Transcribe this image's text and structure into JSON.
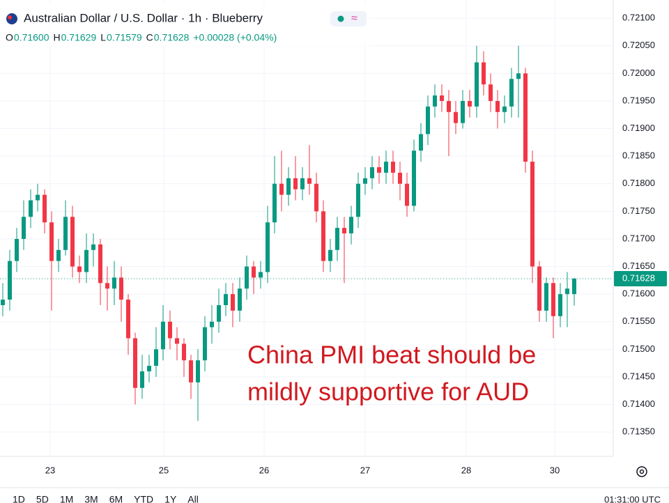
{
  "chart_data": {
    "type": "candlestick",
    "title": "Australian Dollar / U.S. Dollar · 1h · Blueberry",
    "ohlc_header": {
      "o_label": "O",
      "open": "0.71600",
      "h_label": "H",
      "high": "0.71629",
      "l_label": "L",
      "low": "0.71579",
      "c_label": "C",
      "close": "0.71628",
      "change": "+0.00028 (+0.04%)"
    },
    "last_price_label": "0.71628",
    "annotation": [
      "China PMI beat should be",
      "mildly supportive for AUD"
    ],
    "up_color": "#089981",
    "down_color": "#f23645",
    "annotation_color": "#d0191f",
    "grid": true,
    "x": [
      0,
      1,
      2,
      3,
      4,
      5,
      6,
      7,
      8,
      9,
      10,
      11,
      12,
      13,
      14,
      15,
      16,
      17,
      18,
      19,
      20,
      21,
      22,
      23,
      24,
      25,
      26,
      27,
      28,
      29,
      30,
      31,
      32,
      33,
      34,
      35,
      36,
      37,
      38,
      39,
      40,
      41,
      42,
      43,
      44,
      45,
      46,
      47,
      48,
      49,
      50,
      51,
      52,
      53,
      54,
      55,
      56,
      57,
      58,
      59,
      60,
      61,
      62,
      63,
      64,
      65,
      66,
      67,
      68,
      69,
      70,
      71,
      72,
      73,
      74,
      75,
      76,
      77,
      78,
      79,
      80,
      81,
      82
    ],
    "open": [
      0.7158,
      0.7159,
      0.7166,
      0.717,
      0.7174,
      0.7177,
      0.7178,
      0.7173,
      0.7166,
      0.7168,
      0.7174,
      0.7165,
      0.7164,
      0.7168,
      0.7169,
      0.7162,
      0.7161,
      0.7163,
      0.7159,
      0.7152,
      0.7143,
      0.7146,
      0.7147,
      0.715,
      0.7155,
      0.7152,
      0.7151,
      0.7148,
      0.7144,
      0.7148,
      0.7154,
      0.7155,
      0.7158,
      0.716,
      0.7157,
      0.7161,
      0.7165,
      0.7163,
      0.7164,
      0.7173,
      0.718,
      0.7178,
      0.7181,
      0.7179,
      0.7181,
      0.718,
      0.7175,
      0.7166,
      0.7168,
      0.7172,
      0.7171,
      0.7174,
      0.718,
      0.7181,
      0.7183,
      0.7182,
      0.7184,
      0.7182,
      0.718,
      0.7176,
      0.7186,
      0.7189,
      0.7194,
      0.7196,
      0.7195,
      0.7193,
      0.7191,
      0.7195,
      0.7194,
      0.7202,
      0.7198,
      0.7195,
      0.7193,
      0.7194,
      0.7199,
      0.72,
      0.7184,
      0.7165,
      0.7157,
      0.7162,
      0.7156,
      0.716,
      0.716
    ],
    "high": [
      0.7162,
      0.7168,
      0.7172,
      0.7177,
      0.7179,
      0.718,
      0.7179,
      0.7175,
      0.717,
      0.7177,
      0.7176,
      0.7167,
      0.7171,
      0.7171,
      0.717,
      0.7165,
      0.7166,
      0.7165,
      0.716,
      0.7153,
      0.7149,
      0.7149,
      0.7154,
      0.7158,
      0.7157,
      0.7154,
      0.7152,
      0.7149,
      0.715,
      0.7156,
      0.7158,
      0.7161,
      0.7162,
      0.7162,
      0.7163,
      0.7167,
      0.7166,
      0.7166,
      0.7176,
      0.7185,
      0.7186,
      0.7183,
      0.7185,
      0.7183,
      0.7187,
      0.7182,
      0.7177,
      0.717,
      0.7174,
      0.7174,
      0.7176,
      0.7182,
      0.7183,
      0.7185,
      0.7185,
      0.7186,
      0.7186,
      0.7184,
      0.7182,
      0.7188,
      0.7191,
      0.7196,
      0.7198,
      0.7198,
      0.7197,
      0.7195,
      0.7197,
      0.7197,
      0.7205,
      0.7204,
      0.72,
      0.7197,
      0.7196,
      0.7201,
      0.7205,
      0.7201,
      0.7186,
      0.7166,
      0.7163,
      0.7163,
      0.7162,
      0.7164,
      0.71629
    ],
    "low": [
      0.7156,
      0.7157,
      0.7164,
      0.7168,
      0.7172,
      0.7175,
      0.7171,
      0.7157,
      0.7164,
      0.7167,
      0.7163,
      0.7162,
      0.7162,
      0.7165,
      0.7158,
      0.7157,
      0.7158,
      0.7155,
      0.7149,
      0.714,
      0.7141,
      0.7144,
      0.7145,
      0.7148,
      0.715,
      0.7148,
      0.7145,
      0.7141,
      0.7137,
      0.7146,
      0.7151,
      0.7153,
      0.7156,
      0.7154,
      0.7155,
      0.7159,
      0.716,
      0.7161,
      0.7162,
      0.7171,
      0.7175,
      0.7176,
      0.7177,
      0.7177,
      0.7178,
      0.7173,
      0.7164,
      0.7164,
      0.7166,
      0.7162,
      0.7169,
      0.7172,
      0.7178,
      0.7179,
      0.718,
      0.718,
      0.718,
      0.7177,
      0.7174,
      0.7175,
      0.7184,
      0.7187,
      0.7192,
      0.7193,
      0.7185,
      0.7189,
      0.719,
      0.7192,
      0.7192,
      0.7196,
      0.7193,
      0.719,
      0.7191,
      0.7192,
      0.7192,
      0.7182,
      0.7162,
      0.7155,
      0.7155,
      0.7152,
      0.7154,
      0.7154,
      0.71579
    ],
    "close": [
      0.7159,
      0.7166,
      0.717,
      0.7174,
      0.7177,
      0.7178,
      0.7173,
      0.7166,
      0.7168,
      0.7174,
      0.7165,
      0.7164,
      0.7168,
      0.7169,
      0.7162,
      0.7161,
      0.7163,
      0.7159,
      0.7152,
      0.7143,
      0.7146,
      0.7147,
      0.715,
      0.7155,
      0.7152,
      0.7151,
      0.7148,
      0.7144,
      0.7148,
      0.7154,
      0.7155,
      0.7158,
      0.716,
      0.7157,
      0.7161,
      0.7165,
      0.7163,
      0.7164,
      0.7173,
      0.718,
      0.7178,
      0.7181,
      0.7179,
      0.7181,
      0.718,
      0.7175,
      0.7166,
      0.7168,
      0.7172,
      0.7171,
      0.7174,
      0.718,
      0.7181,
      0.7183,
      0.7182,
      0.7184,
      0.7182,
      0.718,
      0.7176,
      0.7186,
      0.7189,
      0.7194,
      0.7196,
      0.7195,
      0.7193,
      0.7191,
      0.7195,
      0.7194,
      0.7202,
      0.7198,
      0.7195,
      0.7193,
      0.7194,
      0.7199,
      0.72,
      0.7184,
      0.7165,
      0.7157,
      0.7162,
      0.7156,
      0.716,
      0.7161,
      0.71628
    ],
    "last_price": 0.71628,
    "xlim": [
      -0.4,
      87.6
    ],
    "xticks": [
      {
        "value": 6.8,
        "label": "23"
      },
      {
        "value": 23.1,
        "label": "25"
      },
      {
        "value": 37.5,
        "label": "26"
      },
      {
        "value": 52,
        "label": "27"
      },
      {
        "value": 66.5,
        "label": "28"
      },
      {
        "value": 79.2,
        "label": "30"
      }
    ],
    "ylim": [
      0.71306,
      0.72133
    ],
    "yticks": [
      {
        "value": 0.721,
        "label": "0.72100"
      },
      {
        "value": 0.7205,
        "label": "0.72050"
      },
      {
        "value": 0.72,
        "label": "0.72000"
      },
      {
        "value": 0.7195,
        "label": "0.71950"
      },
      {
        "value": 0.719,
        "label": "0.71900"
      },
      {
        "value": 0.7185,
        "label": "0.71850"
      },
      {
        "value": 0.718,
        "label": "0.71800"
      },
      {
        "value": 0.7175,
        "label": "0.71750"
      },
      {
        "value": 0.717,
        "label": "0.71700"
      },
      {
        "value": 0.7165,
        "label": "0.71650"
      },
      {
        "value": 0.716,
        "label": "0.71600"
      },
      {
        "value": 0.7155,
        "label": "0.71550"
      },
      {
        "value": 0.715,
        "label": "0.71500"
      },
      {
        "value": 0.7145,
        "label": "0.71450"
      },
      {
        "value": 0.714,
        "label": "0.71400"
      },
      {
        "value": 0.7135,
        "label": "0.71350"
      }
    ],
    "toolbar": [
      "1D",
      "5D",
      "1M",
      "3M",
      "6M",
      "YTD",
      "1Y",
      "All"
    ],
    "time": "01:31:00 UTC"
  }
}
